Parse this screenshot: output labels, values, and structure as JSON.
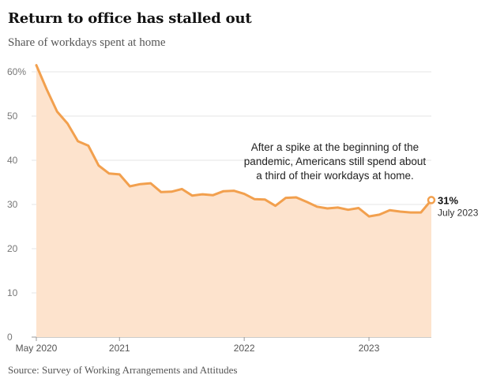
{
  "header": {
    "title": "Return to office has stalled out",
    "subtitle": "Share of workdays spent at home"
  },
  "footer": {
    "source": "Source: Survey of Working Arrangements and Attitudes"
  },
  "colors": {
    "line": "#f2a04e",
    "fill": "#fde3cd",
    "grid": "#e6e6e6",
    "axis": "#999999"
  },
  "chart_data": {
    "type": "area",
    "title": "Return to office has stalled out",
    "subtitle": "Share of workdays spent at home",
    "xlabel": "",
    "ylabel": "",
    "ylim": [
      0,
      60
    ],
    "yticks": [
      0,
      10,
      20,
      30,
      40,
      50,
      60
    ],
    "ytick_labels": [
      "0",
      "10",
      "20",
      "30",
      "40",
      "50",
      "60%"
    ],
    "xtick_labels": [
      "May 2020",
      "2021",
      "2022",
      "2023"
    ],
    "grid": true,
    "x": [
      "2020-05",
      "2020-06",
      "2020-07",
      "2020-08",
      "2020-09",
      "2020-10",
      "2020-11",
      "2020-12",
      "2021-01",
      "2021-02",
      "2021-03",
      "2021-04",
      "2021-05",
      "2021-06",
      "2021-07",
      "2021-08",
      "2021-09",
      "2021-10",
      "2021-11",
      "2021-12",
      "2022-01",
      "2022-02",
      "2022-03",
      "2022-04",
      "2022-05",
      "2022-06",
      "2022-07",
      "2022-08",
      "2022-09",
      "2022-10",
      "2022-11",
      "2022-12",
      "2023-01",
      "2023-02",
      "2023-03",
      "2023-04",
      "2023-05",
      "2023-06",
      "2023-07"
    ],
    "series": [
      {
        "values": [
          61.5,
          56.0,
          51.0,
          48.3,
          44.3,
          43.3,
          38.8,
          37.0,
          36.8,
          34.1,
          34.6,
          34.8,
          32.8,
          32.9,
          33.5,
          32.0,
          32.3,
          32.1,
          33.0,
          33.1,
          32.4,
          31.2,
          31.1,
          29.7,
          31.5,
          31.6,
          30.6,
          29.5,
          29.1,
          29.3,
          28.8,
          29.2,
          27.3,
          27.7,
          28.7,
          28.4,
          28.2,
          28.2,
          31.0
        ]
      }
    ],
    "annotations": [
      {
        "lines": [
          "After a spike at the beginning of the",
          "pandemic, Americans still spend about",
          "a third of their workdays at home."
        ]
      }
    ],
    "end_label": {
      "value": "31%",
      "date": "July 2023"
    }
  }
}
